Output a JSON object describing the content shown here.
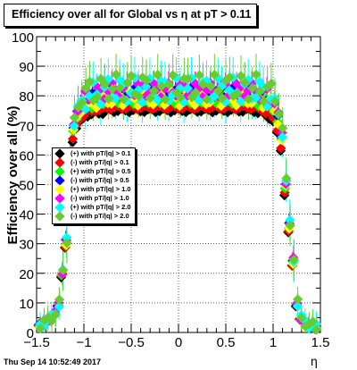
{
  "chart_data": {
    "type": "scatter",
    "title": "Efficiency over all for Global vs   η at pT > 0.11",
    "xlabel": "η",
    "ylabel": "Efficiency over all (%)",
    "xlim": [
      -1.5,
      1.5
    ],
    "ylim": [
      0,
      100
    ],
    "x_ticks": [
      "−1.5",
      "−1",
      "−0.5",
      "0",
      "0.5",
      "1",
      "1.5"
    ],
    "y_ticks": [
      "0",
      "10",
      "20",
      "30",
      "40",
      "50",
      "60",
      "70",
      "80",
      "90",
      "100"
    ],
    "grid": true,
    "legend_position": "left-middle",
    "series": [
      {
        "name": "(+) with pT/|q| > 0.1",
        "color": "#000000",
        "plateau": 75,
        "error": 1
      },
      {
        "name": "(-) with pT/|q| > 0.1",
        "color": "#ff0000",
        "plateau": 76,
        "error": 1
      },
      {
        "name": "(+) with pT/|q| > 0.5",
        "color": "#00ff00",
        "plateau": 79,
        "error": 3
      },
      {
        "name": "(-) with pT/|q| > 0.5",
        "color": "#0000ff",
        "plateau": 81,
        "error": 3
      },
      {
        "name": "(+) with pT/|q| > 1.0",
        "color": "#ffff00",
        "plateau": 79,
        "error": 4
      },
      {
        "name": "(-) with pT/|q| > 1.0",
        "color": "#ff00ff",
        "plateau": 82,
        "error": 4
      },
      {
        "name": "(+) with pT/|q| > 2.0",
        "color": "#00ffff",
        "plateau": 82,
        "error": 7
      },
      {
        "name": "(-) with pT/|q| > 2.0",
        "color": "#66cc33",
        "plateau": 83,
        "error": 7
      }
    ],
    "shape": {
      "eta": [
        -1.47,
        -1.43,
        -1.39,
        -1.35,
        -1.31,
        -1.27,
        -1.23,
        -1.19,
        -1.15,
        -1.11,
        -1.07,
        -1.03,
        -0.99,
        -0.95,
        -0.91,
        -0.87,
        -0.83,
        -0.79,
        -0.75,
        -0.71,
        -0.67,
        -0.63,
        -0.59,
        -0.55,
        -0.51,
        -0.47,
        -0.43,
        -0.39,
        -0.35,
        -0.31,
        -0.27,
        -0.23,
        -0.19,
        -0.15,
        -0.11,
        -0.07,
        -0.03,
        0.01,
        0.05,
        0.09,
        0.13,
        0.17,
        0.21,
        0.25,
        0.29,
        0.33,
        0.37,
        0.41,
        0.45,
        0.49,
        0.53,
        0.57,
        0.61,
        0.65,
        0.69,
        0.73,
        0.77,
        0.81,
        0.85,
        0.89,
        0.93,
        0.97,
        1.01,
        1.05,
        1.09,
        1.13,
        1.17,
        1.21,
        1.25,
        1.29,
        1.33,
        1.37,
        1.41,
        1.45
      ],
      "frac": [
        0.03,
        0.04,
        0.05,
        0.06,
        0.08,
        0.12,
        0.25,
        0.38,
        0.72,
        0.86,
        0.92,
        0.95,
        0.97,
        0.98,
        0.98,
        0.99,
        0.99,
        0.99,
        1.0,
        1.0,
        1.0,
        1.0,
        1.0,
        1.0,
        1.0,
        1.0,
        1.0,
        1.0,
        1.0,
        1.0,
        1.0,
        1.0,
        1.0,
        1.0,
        1.0,
        1.0,
        1.0,
        1.0,
        1.0,
        1.0,
        1.0,
        1.0,
        1.0,
        1.0,
        1.0,
        1.0,
        1.0,
        1.0,
        1.0,
        1.0,
        1.0,
        1.0,
        1.0,
        1.0,
        1.0,
        1.0,
        1.0,
        1.0,
        0.99,
        0.99,
        0.98,
        0.97,
        0.95,
        0.9,
        0.82,
        0.62,
        0.45,
        0.3,
        0.12,
        0.06,
        0.04,
        0.03,
        0.03,
        0.02
      ]
    }
  },
  "footer": {
    "date": "Thu Sep 14 10:52:49 2017"
  }
}
